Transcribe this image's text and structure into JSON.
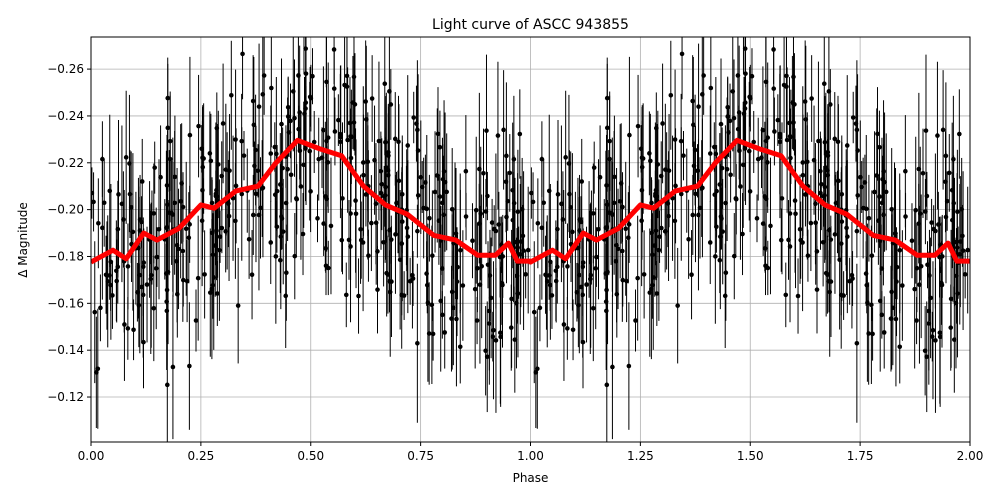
{
  "chart_data": {
    "type": "scatter",
    "title": "Light curve of ASCC 943855",
    "xlabel": "Phase",
    "ylabel": "Δ Magnitude",
    "xlim": [
      0,
      2
    ],
    "ylim": [
      -0.1008,
      -0.2737
    ],
    "y_inverted": true,
    "grid": true,
    "xticks": [
      "0.00",
      "0.25",
      "0.50",
      "0.75",
      "1.00",
      "1.25",
      "1.50",
      "1.75",
      "2.00"
    ],
    "xtick_values": [
      0,
      0.25,
      0.5,
      0.75,
      1,
      1.25,
      1.5,
      1.75,
      2
    ],
    "yticks": [
      "−0.12",
      "−0.14",
      "−0.16",
      "−0.18",
      "−0.20",
      "−0.22",
      "−0.24",
      "−0.26"
    ],
    "ytick_values": [
      -0.12,
      -0.14,
      -0.16,
      -0.18,
      -0.2,
      -0.22,
      -0.24,
      -0.26
    ],
    "scatter": {
      "color": "#000000",
      "n_points_per_cycle": 450,
      "scatter_std": 0.03,
      "typical_error": 0.02
    },
    "trend": {
      "color": "#ff0000",
      "phase": [
        0.0,
        0.05,
        0.08,
        0.12,
        0.15,
        0.2,
        0.25,
        0.28,
        0.33,
        0.38,
        0.42,
        0.47,
        0.52,
        0.57,
        0.62,
        0.67,
        0.72,
        0.78,
        0.83,
        0.88,
        0.92,
        0.95,
        0.97,
        1.0
      ],
      "values": [
        -0.1776,
        -0.1827,
        -0.179,
        -0.19,
        -0.187,
        -0.192,
        -0.202,
        -0.2006,
        -0.208,
        -0.21,
        -0.2198,
        -0.2296,
        -0.226,
        -0.223,
        -0.21,
        -0.202,
        -0.198,
        -0.189,
        -0.187,
        -0.1805,
        -0.1805,
        -0.1857,
        -0.178,
        -0.178
      ],
      "period_repeat": 2
    }
  }
}
